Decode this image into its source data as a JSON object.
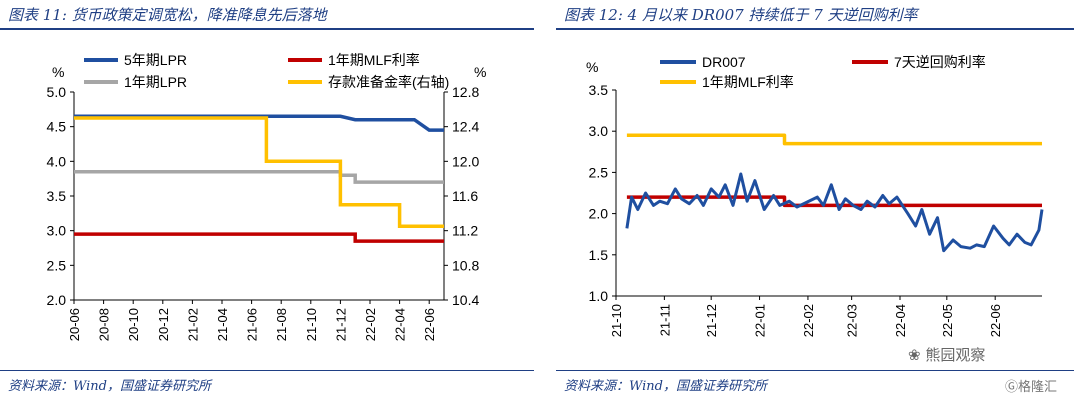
{
  "panels": [
    {
      "title": "图表 11:  货币政策定调宽松，降准降息先后落地",
      "source": "资料来源：Wind，国盛证券研究所"
    },
    {
      "title": "图表 12:  4 月以来 DR007 持续低于 7 天逆回购利率",
      "source": "资料来源：Wind，国盛证券研究所"
    }
  ],
  "watermark": {
    "text": "熊园观察",
    "text2": "格隆汇"
  },
  "chart_data": [
    {
      "type": "line",
      "ylabel": "%",
      "y2label": "%",
      "ylim": [
        2.0,
        5.0
      ],
      "y2lim": [
        10.4,
        12.8
      ],
      "yticks": [
        "2.0",
        "2.5",
        "3.0",
        "3.5",
        "4.0",
        "4.5",
        "5.0"
      ],
      "y2ticks": [
        "10.4",
        "10.8",
        "11.2",
        "11.6",
        "12.0",
        "12.4",
        "12.8"
      ],
      "x_range": [
        "2020-06",
        "2022-07"
      ],
      "xticks": [
        "20-06",
        "20-08",
        "20-10",
        "20-12",
        "21-02",
        "21-04",
        "21-06",
        "21-08",
        "21-10",
        "21-12",
        "22-02",
        "22-04",
        "22-06"
      ],
      "series": [
        {
          "name": "5年期LPR",
          "color": "#1f4fa0",
          "axis": "left",
          "x": [
            "2020-06",
            "2021-12",
            "2022-01",
            "2022-05",
            "2022-06",
            "2022-07"
          ],
          "y": [
            4.65,
            4.65,
            4.6,
            4.6,
            4.45,
            4.45
          ]
        },
        {
          "name": "1年期MLF利率",
          "color": "#c00000",
          "axis": "left",
          "x": [
            "2020-06",
            "2022-01",
            "2022-01",
            "2022-07"
          ],
          "y": [
            2.95,
            2.95,
            2.85,
            2.85
          ]
        },
        {
          "name": "1年期LPR",
          "color": "#a6a6a6",
          "axis": "left",
          "x": [
            "2020-06",
            "2021-12",
            "2021-12",
            "2022-01",
            "2022-01",
            "2022-07"
          ],
          "y": [
            3.85,
            3.85,
            3.8,
            3.8,
            3.7,
            3.7
          ]
        },
        {
          "name": "存款准备金率(右轴)",
          "color": "#ffc000",
          "axis": "right",
          "x": [
            "2020-06",
            "2021-07",
            "2021-07",
            "2021-12",
            "2021-12",
            "2022-04",
            "2022-04",
            "2022-07"
          ],
          "y": [
            12.5,
            12.5,
            12.0,
            12.0,
            11.5,
            11.5,
            11.25,
            11.25
          ]
        }
      ]
    },
    {
      "type": "line",
      "ylabel": "%",
      "ylim": [
        1.0,
        3.5
      ],
      "yticks": [
        "1.0",
        "1.5",
        "2.0",
        "2.5",
        "3.0",
        "3.5"
      ],
      "x_range": [
        "2021-10",
        "2022-07"
      ],
      "xticks": [
        "21-10",
        "21-11",
        "21-12",
        "22-01",
        "22-02",
        "22-03",
        "22-04",
        "22-05",
        "22-06"
      ],
      "series": [
        {
          "name": "DR007",
          "color": "#1f4fa0",
          "x": [
            "2021-10-08",
            "2021-10-11",
            "2021-10-15",
            "2021-10-20",
            "2021-10-25",
            "2021-10-29",
            "2021-11-03",
            "2021-11-08",
            "2021-11-12",
            "2021-11-17",
            "2021-11-22",
            "2021-11-26",
            "2021-12-01",
            "2021-12-06",
            "2021-12-10",
            "2021-12-15",
            "2021-12-20",
            "2021-12-24",
            "2021-12-29",
            "2022-01-04",
            "2022-01-10",
            "2022-01-14",
            "2022-01-20",
            "2022-01-25",
            "2022-02-07",
            "2022-02-11",
            "2022-02-16",
            "2022-02-21",
            "2022-02-25",
            "2022-03-02",
            "2022-03-07",
            "2022-03-11",
            "2022-03-16",
            "2022-03-21",
            "2022-03-25",
            "2022-03-30",
            "2022-04-06",
            "2022-04-11",
            "2022-04-15",
            "2022-04-20",
            "2022-04-25",
            "2022-04-29",
            "2022-05-05",
            "2022-05-10",
            "2022-05-16",
            "2022-05-20",
            "2022-05-25",
            "2022-05-31",
            "2022-06-06",
            "2022-06-10",
            "2022-06-15",
            "2022-06-20",
            "2022-06-24",
            "2022-06-29",
            "2022-07-01"
          ],
          "y": [
            1.82,
            2.2,
            2.05,
            2.25,
            2.1,
            2.15,
            2.12,
            2.3,
            2.18,
            2.12,
            2.22,
            2.1,
            2.3,
            2.2,
            2.35,
            2.1,
            2.48,
            2.15,
            2.4,
            2.05,
            2.22,
            2.1,
            2.15,
            2.08,
            2.2,
            2.1,
            2.35,
            2.05,
            2.18,
            2.1,
            2.05,
            2.15,
            2.08,
            2.22,
            2.12,
            2.2,
            2.0,
            1.85,
            2.05,
            1.75,
            1.95,
            1.55,
            1.68,
            1.6,
            1.58,
            1.62,
            1.6,
            1.85,
            1.7,
            1.62,
            1.75,
            1.65,
            1.62,
            1.8,
            2.05
          ]
        },
        {
          "name": "7天逆回购利率",
          "color": "#c00000",
          "x": [
            "2021-10-08",
            "2022-01-17",
            "2022-01-17",
            "2022-07-01"
          ],
          "y": [
            2.2,
            2.2,
            2.1,
            2.1
          ]
        },
        {
          "name": "1年期MLF利率",
          "color": "#ffc000",
          "x": [
            "2021-10-08",
            "2022-01-17",
            "2022-01-17",
            "2022-07-01"
          ],
          "y": [
            2.95,
            2.95,
            2.85,
            2.85
          ]
        }
      ]
    }
  ]
}
